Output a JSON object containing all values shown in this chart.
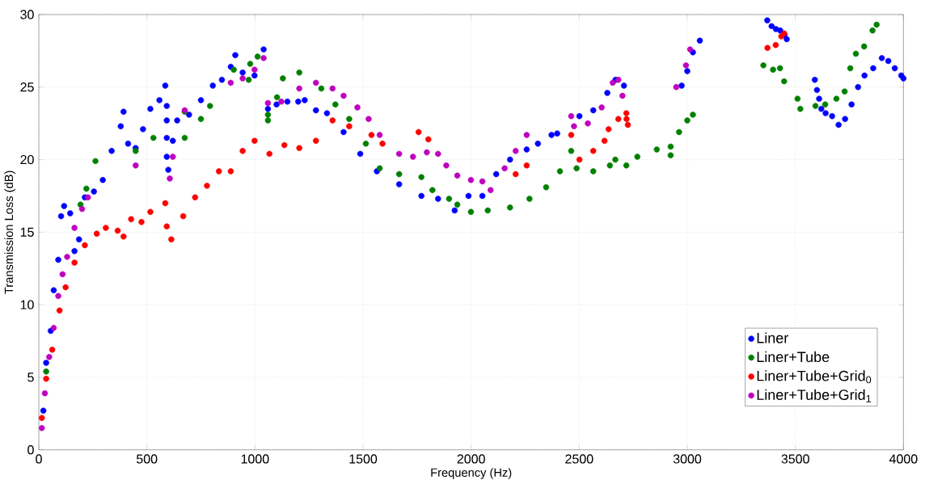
{
  "chart_data": {
    "type": "scatter",
    "xlabel": "Frequency (Hz)",
    "ylabel": "Transmission Loss (dB)",
    "xlim": [
      0,
      4000
    ],
    "ylim": [
      0,
      30
    ],
    "xticks": [
      0,
      500,
      1000,
      1500,
      2000,
      2500,
      3000,
      3500,
      4000
    ],
    "yticks": [
      0,
      5,
      10,
      15,
      20,
      25,
      30
    ],
    "grid": true,
    "legend": "bottom right",
    "marker": "circle",
    "series": [
      {
        "name": "Liner",
        "color": "#0000ff",
        "x": [
          21,
          34,
          55,
          69,
          90,
          103,
          117,
          145,
          165,
          186,
          213,
          255,
          296,
          337,
          379,
          392,
          413,
          448,
          482,
          516,
          558,
          585,
          592,
          592,
          592,
          592,
          599,
          620,
          640,
          695,
          750,
          805,
          847,
          888,
          909,
          943,
          998,
          1040,
          1060,
          1100,
          1150,
          1200,
          1230,
          1282,
          1333,
          1410,
          1487,
          1564,
          1667,
          1770,
          1847,
          1924,
          1988,
          2052,
          2116,
          2180,
          2257,
          2309,
          2372,
          2398,
          2501,
          2565,
          2630,
          2668,
          2707,
          2974,
          3000,
          3026,
          3058,
          3370,
          3390,
          3410,
          3430,
          3450,
          3460,
          3590,
          3600,
          3610,
          3620,
          3640,
          3670,
          3700,
          3730,
          3760,
          3790,
          3820,
          3860,
          3900,
          3930,
          3960,
          3990,
          4000
        ],
        "values": [
          2.7,
          6.0,
          8.2,
          11.0,
          13.1,
          16.1,
          16.8,
          16.3,
          13.7,
          14.5,
          17.4,
          17.8,
          18.6,
          20.6,
          22.3,
          23.3,
          21.1,
          20.8,
          22.1,
          23.5,
          24.1,
          25.1,
          23.7,
          22.7,
          21.5,
          20.2,
          19.3,
          21.3,
          22.7,
          23.1,
          24.1,
          25.1,
          25.5,
          26.4,
          27.2,
          26.0,
          25.8,
          27.6,
          23.5,
          23.8,
          24.0,
          24.0,
          24.1,
          23.4,
          23.2,
          21.9,
          20.4,
          19.2,
          18.3,
          17.5,
          17.3,
          16.5,
          17.5,
          17.5,
          19.0,
          20.0,
          20.7,
          21.1,
          21.7,
          21.8,
          23.0,
          23.4,
          24.6,
          25.5,
          25.1,
          25.1,
          26.1,
          27.4,
          28.2,
          29.6,
          29.2,
          29.0,
          28.9,
          28.6,
          28.3,
          25.5,
          24.8,
          24.2,
          23.5,
          23.2,
          23.0,
          22.4,
          22.8,
          23.8,
          25.0,
          25.8,
          26.3,
          27.0,
          26.8,
          26.3,
          25.8,
          25.6
        ]
      },
      {
        "name": "Liner+Tube",
        "color": "#008000",
        "x": [
          34,
          193,
          220,
          262,
          448,
          530,
          675,
          675,
          750,
          792,
          902,
          971,
          978,
          1012,
          1060,
          1060,
          1102,
          1129,
          1205,
          1307,
          1372,
          1436,
          1513,
          1577,
          1667,
          1770,
          1821,
          1898,
          1936,
          1999,
          2077,
          2180,
          2270,
          2347,
          2411,
          2463,
          2488,
          2565,
          2642,
          2667,
          2718,
          2769,
          2859,
          2923,
          2923,
          2962,
          3000,
          3026,
          3352,
          3397,
          3429,
          3448,
          3510,
          3523,
          3593,
          3638,
          3690,
          3728,
          3754,
          3780,
          3818,
          3857,
          3876
        ],
        "values": [
          5.4,
          16.9,
          18.0,
          19.9,
          20.6,
          21.5,
          21.5,
          23.3,
          22.8,
          23.7,
          26.2,
          25.5,
          26.6,
          27.1,
          23.1,
          22.7,
          24.3,
          25.6,
          26.0,
          24.9,
          23.8,
          22.8,
          21.1,
          19.4,
          19.0,
          18.8,
          17.9,
          17.3,
          16.9,
          16.4,
          16.5,
          16.7,
          17.3,
          18.1,
          19.2,
          20.6,
          19.4,
          19.2,
          19.6,
          20.0,
          19.6,
          20.2,
          20.7,
          20.3,
          20.9,
          21.9,
          22.7,
          23.1,
          26.5,
          26.2,
          26.3,
          25.4,
          24.2,
          23.5,
          23.7,
          23.8,
          24.2,
          24.7,
          26.3,
          27.3,
          27.8,
          28.9,
          29.3
        ]
      },
      {
        "name": "Liner+Tube+Grid$_{0}$",
        "color": "#ff0000",
        "x": [
          14,
          34,
          62,
          96,
          124,
          165,
          213,
          268,
          310,
          365,
          392,
          427,
          475,
          516,
          585,
          592,
          613,
          668,
          723,
          778,
          833,
          888,
          943,
          998,
          1067,
          1136,
          1205,
          1282,
          1359,
          1436,
          1539,
          1590,
          1757,
          1802,
          2206,
          2257,
          2463,
          2501,
          2565,
          2617,
          2636,
          2681,
          2719,
          2725,
          2718,
          3371,
          3409,
          3435,
          3448
        ],
        "values": [
          2.2,
          4.9,
          6.9,
          9.6,
          11.2,
          12.9,
          14.1,
          14.9,
          15.3,
          15.1,
          14.7,
          15.9,
          15.7,
          16.4,
          17.0,
          15.4,
          14.5,
          16.1,
          17.4,
          18.2,
          19.2,
          19.2,
          20.6,
          21.3,
          20.4,
          21.0,
          20.8,
          21.3,
          22.7,
          22.3,
          21.7,
          21.1,
          21.9,
          21.4,
          19.0,
          19.6,
          21.7,
          20.0,
          20.6,
          21.3,
          22.1,
          22.8,
          22.8,
          22.4,
          23.2,
          27.7,
          27.9,
          28.5,
          28.7
        ]
      },
      {
        "name": "Liner+Tube+Grid$_{1}$",
        "color": "#bf00bf",
        "x": [
          14,
          28,
          48,
          69,
          90,
          110,
          131,
          165,
          200,
          227,
          448,
          606,
          620,
          675,
          888,
          943,
          998,
          1040,
          1060,
          1122,
          1205,
          1282,
          1359,
          1410,
          1474,
          1526,
          1577,
          1667,
          1731,
          1795,
          1847,
          1885,
          1936,
          1999,
          2052,
          2090,
          2155,
          2206,
          2257,
          2463,
          2476,
          2540,
          2604,
          2655,
          2681,
          2700,
          2949,
          2994,
          3013
        ],
        "values": [
          1.5,
          3.9,
          6.4,
          8.4,
          10.6,
          12.1,
          13.3,
          15.3,
          16.6,
          17.4,
          19.6,
          18.7,
          20.2,
          23.4,
          25.3,
          25.6,
          26.2,
          27.0,
          23.9,
          24.0,
          24.9,
          25.3,
          24.9,
          24.4,
          23.6,
          22.8,
          21.7,
          20.4,
          20.2,
          20.5,
          20.4,
          19.6,
          18.9,
          18.6,
          18.5,
          17.9,
          19.4,
          20.6,
          21.7,
          23.0,
          22.3,
          22.5,
          23.6,
          25.3,
          25.5,
          24.4,
          25.0,
          26.5,
          27.6
        ]
      }
    ]
  }
}
